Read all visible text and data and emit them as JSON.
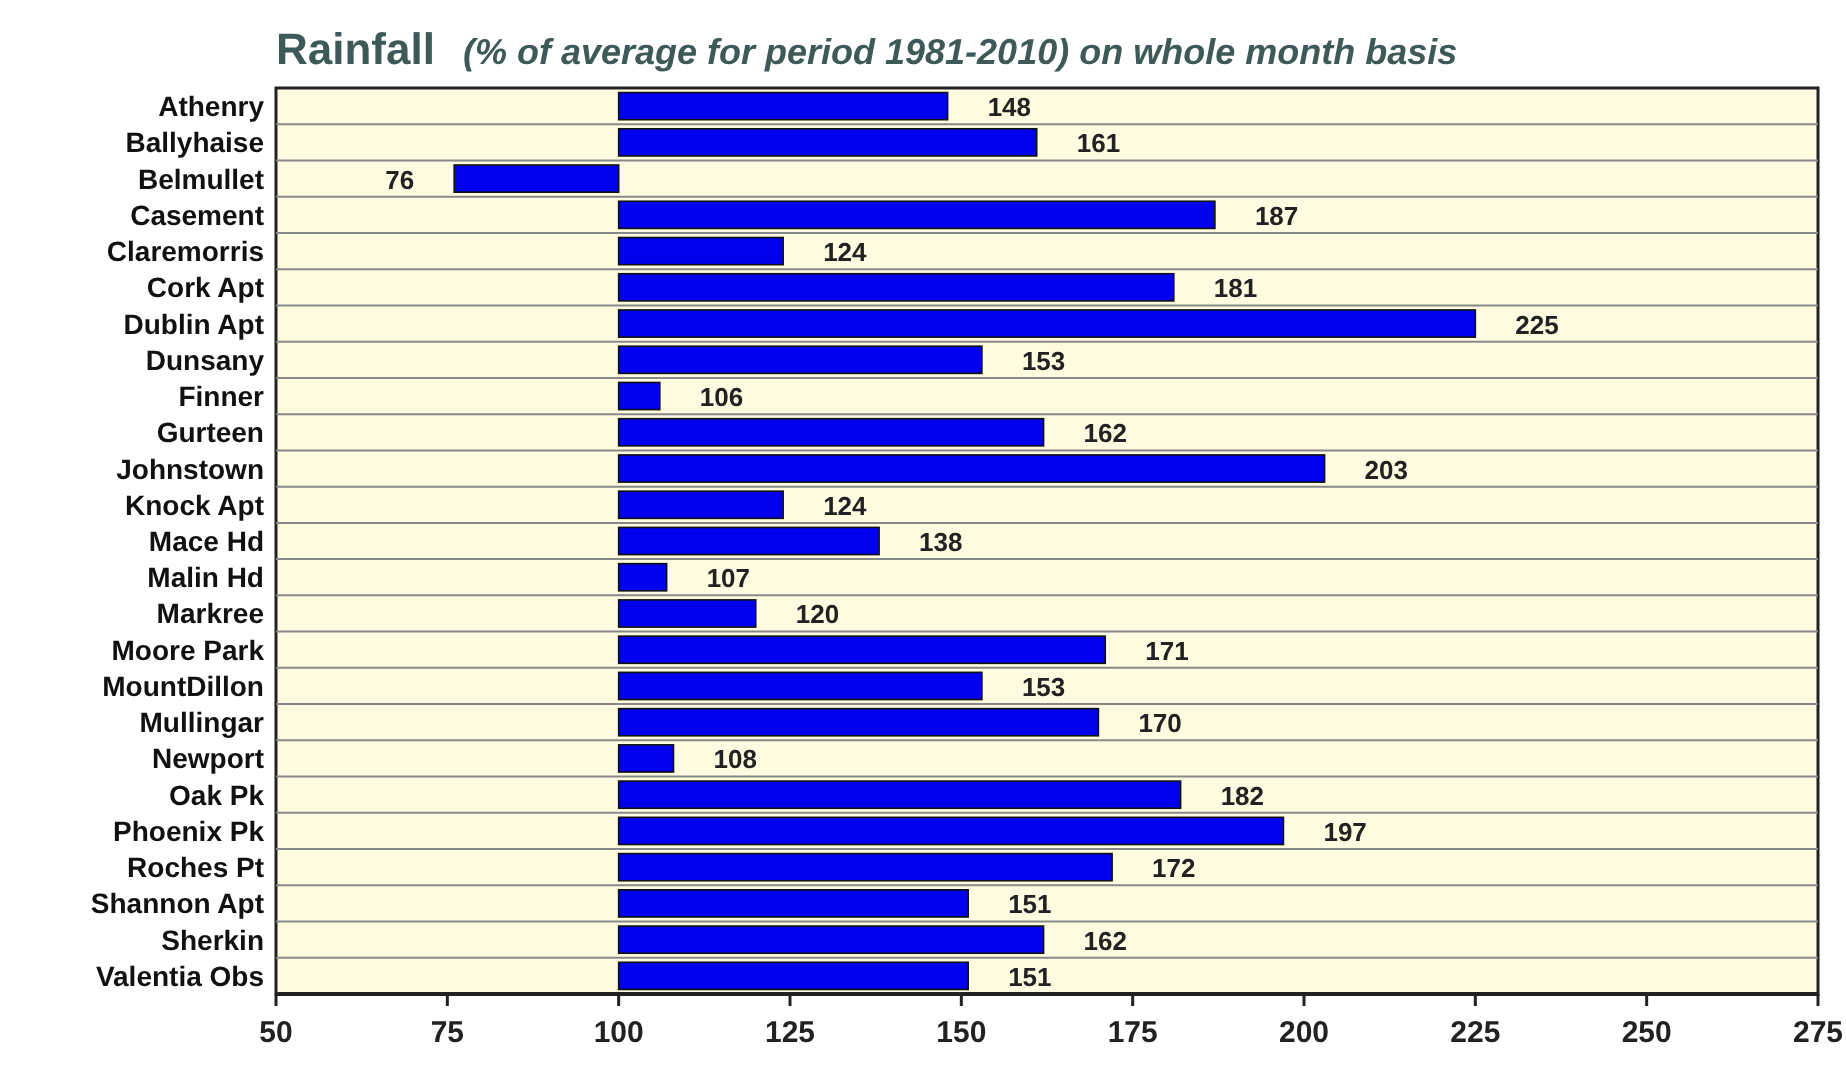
{
  "chart_data": {
    "type": "bar",
    "orientation": "horizontal",
    "title": "Rainfall",
    "subtitle": "(% of average for period 1981-2010) on whole month basis",
    "categories": [
      "Athenry",
      "Ballyhaise",
      "Belmullet",
      "Casement",
      "Claremorris",
      "Cork Apt",
      "Dublin Apt",
      "Dunsany",
      "Finner",
      "Gurteen",
      "Johnstown",
      "Knock Apt",
      "Mace Hd",
      "Malin Hd",
      "Markree",
      "Moore Park",
      "MountDillon",
      "Mullingar",
      "Newport",
      "Oak Pk",
      "Phoenix Pk",
      "Roches Pt",
      "Shannon Apt",
      "Sherkin",
      "Valentia Obs"
    ],
    "base": [
      100,
      100,
      100,
      100,
      100,
      100,
      100,
      100,
      100,
      100,
      100,
      100,
      100,
      100,
      100,
      100,
      100,
      100,
      100,
      100,
      100,
      100,
      100,
      100,
      100
    ],
    "values": [
      48,
      61,
      -24,
      87,
      24,
      81,
      125,
      53,
      6,
      62,
      103,
      24,
      38,
      7,
      20,
      71,
      53,
      70,
      8,
      82,
      97,
      72,
      51,
      62,
      51
    ],
    "value_labels": [
      "148",
      "161",
      "76",
      "187",
      "124",
      "181",
      "225",
      "153",
      "106",
      "162",
      "203",
      "124",
      "138",
      "107",
      "120",
      "171",
      "153",
      "170",
      "108",
      "182",
      "197",
      "172",
      "151",
      "162",
      "151"
    ],
    "color": "#0000ee",
    "xlim": [
      50,
      275
    ],
    "xticks": [
      50,
      75,
      100,
      125,
      150,
      175,
      200,
      225,
      250,
      275
    ],
    "grid": "y"
  }
}
